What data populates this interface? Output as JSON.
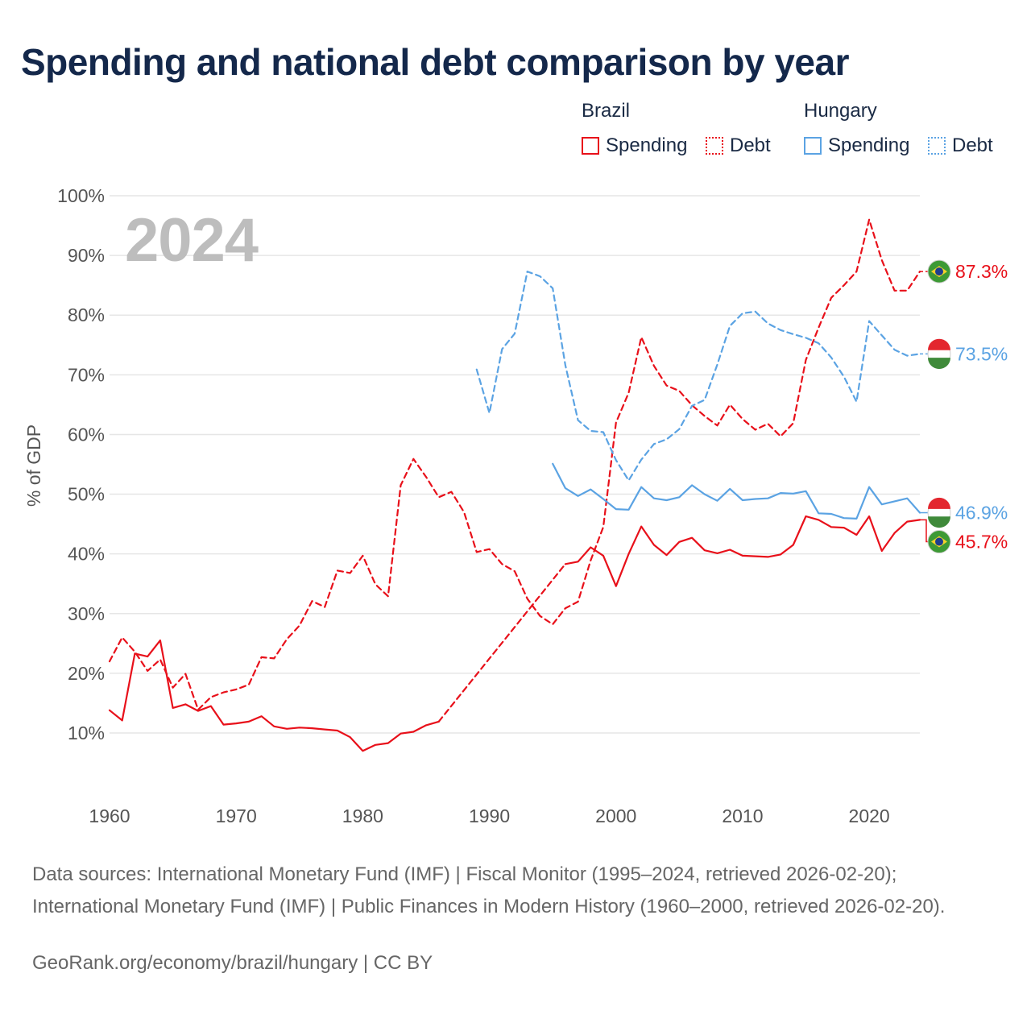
{
  "title": "Spending and national debt comparison by year",
  "year_label": "2024",
  "legend": {
    "brazil": {
      "name": "Brazil",
      "spending": "Spending",
      "debt": "Debt"
    },
    "hungary": {
      "name": "Hungary",
      "spending": "Spending",
      "debt": "Debt"
    }
  },
  "colors": {
    "brazil": "#e8101a",
    "hungary": "#5ba3e3",
    "grid": "#e6e6e6",
    "axis_text": "#555555"
  },
  "sources": "Data sources: International Monetary Fund (IMF) | Fiscal Monitor (1995–2024, retrieved 2026-02-20); International Monetary Fund (IMF) | Public Finances in Modern History (1960–2000, retrieved 2026-02-20).",
  "credit": "GeoRank.org/economy/brazil/hungary | CC BY",
  "chart_data": {
    "type": "line",
    "title": "Spending and national debt comparison by year",
    "xlabel": "",
    "ylabel": "% of GDP",
    "xlim": [
      1960,
      2024
    ],
    "ylim": [
      0,
      100
    ],
    "x_ticks": [
      1960,
      1970,
      1980,
      1990,
      2000,
      2010,
      2020
    ],
    "y_ticks": [
      10,
      20,
      30,
      40,
      50,
      60,
      70,
      80,
      90,
      100
    ],
    "y_tick_labels": [
      "10%",
      "20%",
      "30%",
      "40%",
      "50%",
      "60%",
      "70%",
      "80%",
      "90%",
      "100%"
    ],
    "grid": true,
    "series": [
      {
        "name": "Brazil Spending",
        "country": "brazil",
        "style": "solid",
        "end_label": "45.7%",
        "points": [
          [
            1960,
            13.8
          ],
          [
            1961,
            12.1
          ],
          [
            1962,
            23.3
          ],
          [
            1963,
            22.8
          ],
          [
            1964,
            25.5
          ],
          [
            1965,
            14.2
          ],
          [
            1966,
            14.8
          ],
          [
            1967,
            13.7
          ],
          [
            1968,
            14.5
          ],
          [
            1969,
            11.4
          ],
          [
            1970,
            11.6
          ],
          [
            1971,
            11.9
          ],
          [
            1972,
            12.8
          ],
          [
            1973,
            11.1
          ],
          [
            1974,
            10.7
          ],
          [
            1975,
            10.9
          ],
          [
            1976,
            10.8
          ],
          [
            1977,
            10.6
          ],
          [
            1978,
            10.4
          ],
          [
            1979,
            9.3
          ],
          [
            1980,
            7.0
          ],
          [
            1981,
            8.0
          ],
          [
            1982,
            8.3
          ],
          [
            1983,
            9.9
          ],
          [
            1984,
            10.2
          ],
          [
            1985,
            11.3
          ],
          [
            1986,
            11.9
          ],
          [
            1996,
            38.3
          ],
          [
            1997,
            38.7
          ],
          [
            1998,
            41.1
          ],
          [
            1999,
            39.7
          ],
          [
            2000,
            34.6
          ],
          [
            2001,
            40.0
          ],
          [
            2002,
            44.6
          ],
          [
            2003,
            41.5
          ],
          [
            2004,
            39.8
          ],
          [
            2005,
            42.0
          ],
          [
            2006,
            42.7
          ],
          [
            2007,
            40.6
          ],
          [
            2008,
            40.1
          ],
          [
            2009,
            40.7
          ],
          [
            2010,
            39.7
          ],
          [
            2011,
            39.6
          ],
          [
            2012,
            39.5
          ],
          [
            2013,
            39.9
          ],
          [
            2014,
            41.5
          ],
          [
            2015,
            46.3
          ],
          [
            2016,
            45.7
          ],
          [
            2017,
            44.5
          ],
          [
            2018,
            44.4
          ],
          [
            2019,
            43.2
          ],
          [
            2020,
            46.3
          ],
          [
            2021,
            40.5
          ],
          [
            2022,
            43.5
          ],
          [
            2023,
            45.4
          ],
          [
            2024,
            45.7
          ]
        ]
      },
      {
        "name": "Brazil Debt",
        "country": "brazil",
        "style": "dashed",
        "end_label": "87.3%",
        "points": [
          [
            1960,
            22.0
          ],
          [
            1961,
            26.0
          ],
          [
            1962,
            23.6
          ],
          [
            1963,
            20.4
          ],
          [
            1964,
            22.3
          ],
          [
            1965,
            17.6
          ],
          [
            1966,
            19.9
          ],
          [
            1967,
            13.9
          ],
          [
            1968,
            16.0
          ],
          [
            1969,
            16.8
          ],
          [
            1970,
            17.3
          ],
          [
            1971,
            18.1
          ],
          [
            1972,
            22.7
          ],
          [
            1973,
            22.5
          ],
          [
            1974,
            25.7
          ],
          [
            1975,
            28.0
          ],
          [
            1976,
            32.1
          ],
          [
            1977,
            31.1
          ],
          [
            1978,
            37.2
          ],
          [
            1979,
            36.8
          ],
          [
            1980,
            39.7
          ],
          [
            1981,
            34.9
          ],
          [
            1982,
            32.9
          ],
          [
            1983,
            51.5
          ],
          [
            1984,
            55.9
          ],
          [
            1985,
            52.9
          ],
          [
            1986,
            49.5
          ],
          [
            1987,
            50.4
          ],
          [
            1988,
            47.0
          ],
          [
            1989,
            40.3
          ],
          [
            1990,
            40.8
          ],
          [
            1991,
            38.3
          ],
          [
            1992,
            37.1
          ],
          [
            1993,
            32.5
          ],
          [
            1994,
            29.6
          ],
          [
            1995,
            28.2
          ],
          [
            1996,
            30.9
          ],
          [
            1997,
            32.0
          ],
          [
            1998,
            38.9
          ],
          [
            1999,
            44.5
          ],
          [
            2000,
            62.0
          ],
          [
            2001,
            67.0
          ],
          [
            2002,
            76.3
          ],
          [
            2003,
            71.5
          ],
          [
            2004,
            68.2
          ],
          [
            2005,
            67.3
          ],
          [
            2006,
            64.9
          ],
          [
            2007,
            63.1
          ],
          [
            2008,
            61.5
          ],
          [
            2009,
            65.0
          ],
          [
            2010,
            62.6
          ],
          [
            2011,
            60.8
          ],
          [
            2012,
            61.8
          ],
          [
            2013,
            59.7
          ],
          [
            2014,
            61.9
          ],
          [
            2015,
            72.5
          ],
          [
            2016,
            77.9
          ],
          [
            2017,
            82.9
          ],
          [
            2018,
            85.0
          ],
          [
            2019,
            87.3
          ],
          [
            2020,
            96.0
          ],
          [
            2021,
            89.2
          ],
          [
            2022,
            84.1
          ],
          [
            2023,
            84.1
          ],
          [
            2024,
            87.3
          ]
        ]
      },
      {
        "name": "Hungary Spending",
        "country": "hungary",
        "style": "solid",
        "end_label": "46.9%",
        "points": [
          [
            1995,
            55.1
          ],
          [
            1996,
            51.0
          ],
          [
            1997,
            49.7
          ],
          [
            1998,
            50.8
          ],
          [
            1999,
            49.2
          ],
          [
            2000,
            47.5
          ],
          [
            2001,
            47.4
          ],
          [
            2002,
            51.2
          ],
          [
            2003,
            49.3
          ],
          [
            2004,
            49.0
          ],
          [
            2005,
            49.5
          ],
          [
            2006,
            51.5
          ],
          [
            2007,
            50.0
          ],
          [
            2008,
            48.9
          ],
          [
            2009,
            50.9
          ],
          [
            2010,
            49.0
          ],
          [
            2011,
            49.2
          ],
          [
            2012,
            49.3
          ],
          [
            2013,
            50.2
          ],
          [
            2014,
            50.1
          ],
          [
            2015,
            50.5
          ],
          [
            2016,
            46.8
          ],
          [
            2017,
            46.7
          ],
          [
            2018,
            46.0
          ],
          [
            2019,
            45.9
          ],
          [
            2020,
            51.2
          ],
          [
            2021,
            48.3
          ],
          [
            2022,
            48.8
          ],
          [
            2023,
            49.3
          ],
          [
            2024,
            46.9
          ]
        ]
      },
      {
        "name": "Hungary Debt",
        "country": "hungary",
        "style": "dashed",
        "end_label": "73.5%",
        "points": [
          [
            1989,
            70.9
          ],
          [
            1990,
            63.6
          ],
          [
            1991,
            74.3
          ],
          [
            1992,
            76.9
          ],
          [
            1993,
            87.3
          ],
          [
            1994,
            86.5
          ],
          [
            1995,
            84.5
          ],
          [
            1996,
            71.6
          ],
          [
            1997,
            62.4
          ],
          [
            1998,
            60.6
          ],
          [
            1999,
            60.4
          ],
          [
            2000,
            55.7
          ],
          [
            2001,
            52.3
          ],
          [
            2002,
            55.8
          ],
          [
            2003,
            58.4
          ],
          [
            2004,
            59.2
          ],
          [
            2005,
            60.9
          ],
          [
            2006,
            64.8
          ],
          [
            2007,
            65.8
          ],
          [
            2008,
            71.7
          ],
          [
            2009,
            78.2
          ],
          [
            2010,
            80.3
          ],
          [
            2011,
            80.6
          ],
          [
            2012,
            78.6
          ],
          [
            2013,
            77.5
          ],
          [
            2014,
            76.8
          ],
          [
            2015,
            76.2
          ],
          [
            2016,
            75.3
          ],
          [
            2017,
            72.9
          ],
          [
            2018,
            69.7
          ],
          [
            2019,
            65.5
          ],
          [
            2020,
            79.0
          ],
          [
            2021,
            76.6
          ],
          [
            2022,
            74.2
          ],
          [
            2023,
            73.2
          ],
          [
            2024,
            73.5
          ]
        ]
      }
    ],
    "legend_position": "top-right"
  }
}
